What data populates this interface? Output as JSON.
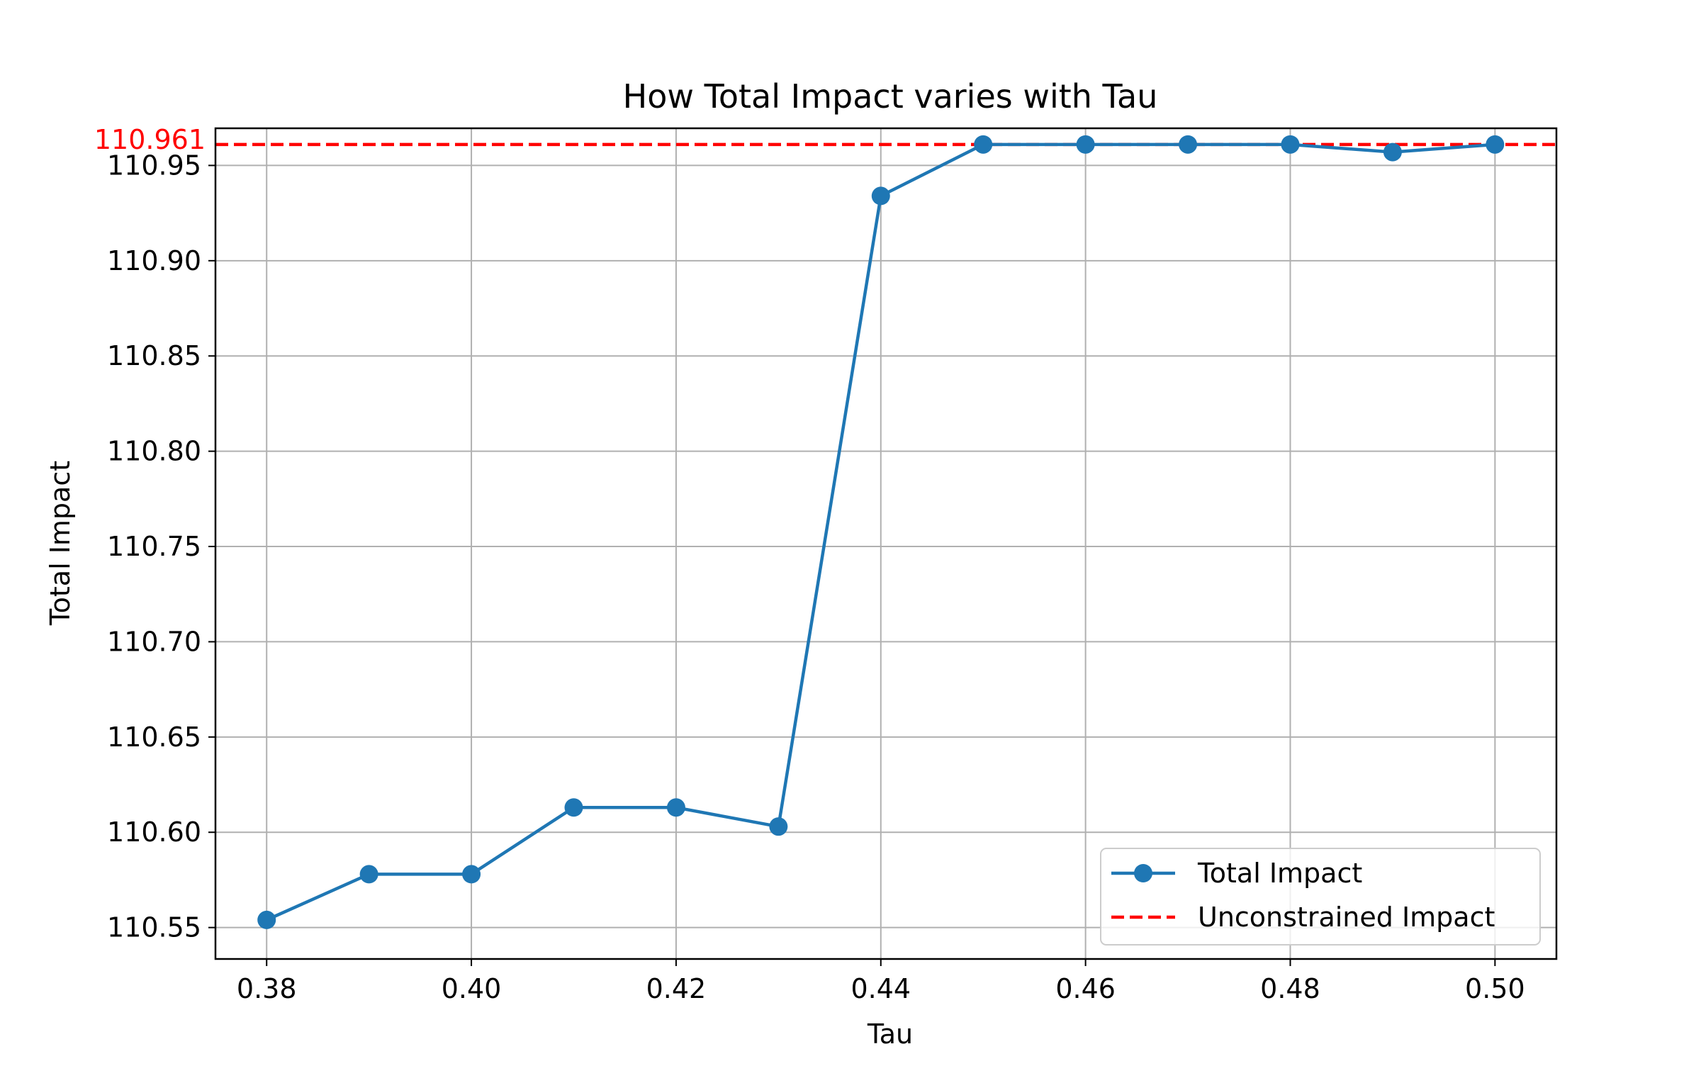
{
  "chart_data": {
    "type": "line",
    "title": "How Total Impact varies with Tau",
    "xlabel": "Tau",
    "ylabel": "Total Impact",
    "xlim": [
      0.375,
      0.506
    ],
    "ylim": [
      110.5335,
      110.9695
    ],
    "x_ticks": [
      0.38,
      0.4,
      0.42,
      0.44,
      0.46,
      0.48,
      0.5
    ],
    "x_tick_labels": [
      "0.38",
      "0.40",
      "0.42",
      "0.44",
      "0.46",
      "0.48",
      "0.50"
    ],
    "y_ticks": [
      110.55,
      110.6,
      110.65,
      110.7,
      110.75,
      110.8,
      110.85,
      110.9,
      110.95
    ],
    "y_tick_labels": [
      "110.55",
      "110.60",
      "110.65",
      "110.70",
      "110.75",
      "110.80",
      "110.85",
      "110.90",
      "110.95"
    ],
    "grid": true,
    "legend_position": "lower-right",
    "series": [
      {
        "name": "Total Impact",
        "style": "line-with-markers",
        "color": "#1f77b4",
        "x": [
          0.38,
          0.39,
          0.4,
          0.41,
          0.42,
          0.43,
          0.44,
          0.45,
          0.46,
          0.47,
          0.48,
          0.49,
          0.5
        ],
        "y": [
          110.554,
          110.578,
          110.578,
          110.613,
          110.613,
          110.603,
          110.934,
          110.961,
          110.961,
          110.961,
          110.961,
          110.957,
          110.961
        ]
      }
    ],
    "reference_line": {
      "name": "Unconstrained Impact",
      "orientation": "horizontal",
      "y": 110.961,
      "color": "#ff0000",
      "style": "dashed",
      "label": "110.961"
    }
  }
}
